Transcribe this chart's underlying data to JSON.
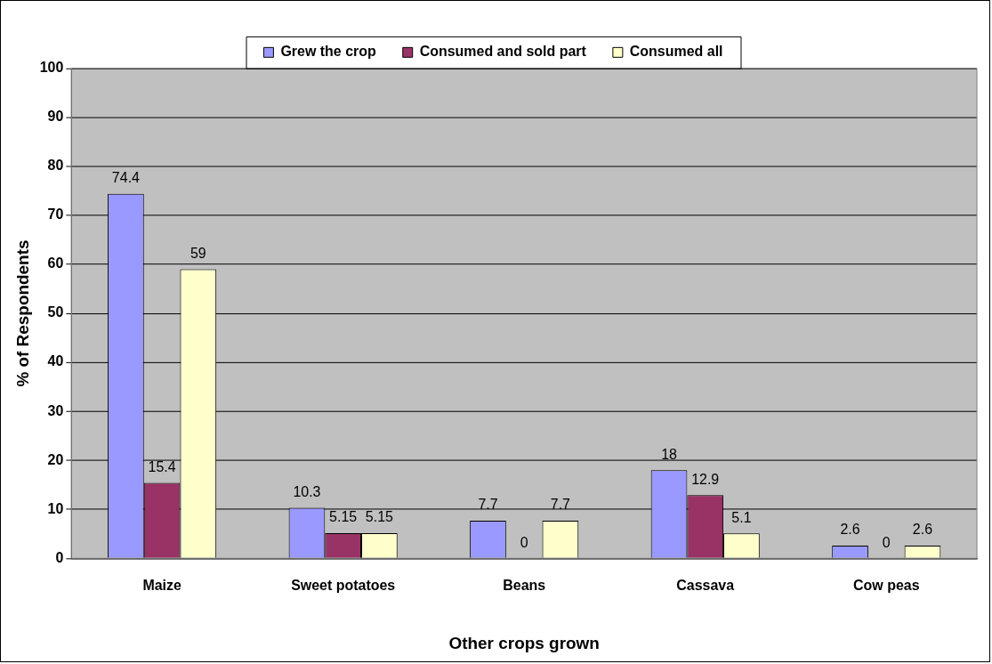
{
  "chart_data": {
    "type": "bar",
    "xlabel": "Other crops grown",
    "ylabel": "% of Respondents",
    "categories": [
      "Maize",
      "Sweet potatoes",
      "Beans",
      "Cassava",
      "Cow peas"
    ],
    "series": [
      {
        "name": "Grew the crop",
        "color": "#9999ff",
        "values": [
          74.4,
          10.3,
          7.7,
          18,
          2.6
        ]
      },
      {
        "name": "Consumed and sold part",
        "color": "#993366",
        "values": [
          15.4,
          5.15,
          0,
          12.9,
          0
        ]
      },
      {
        "name": "Consumed all",
        "color": "#ffffcc",
        "values": [
          59,
          5.15,
          7.7,
          5.1,
          2.6
        ]
      }
    ],
    "ylim": [
      0,
      100
    ],
    "yticks": [
      0,
      10,
      20,
      30,
      40,
      50,
      60,
      70,
      80,
      90,
      100
    ],
    "grid": "y",
    "legend": "top",
    "data_labels": true
  }
}
